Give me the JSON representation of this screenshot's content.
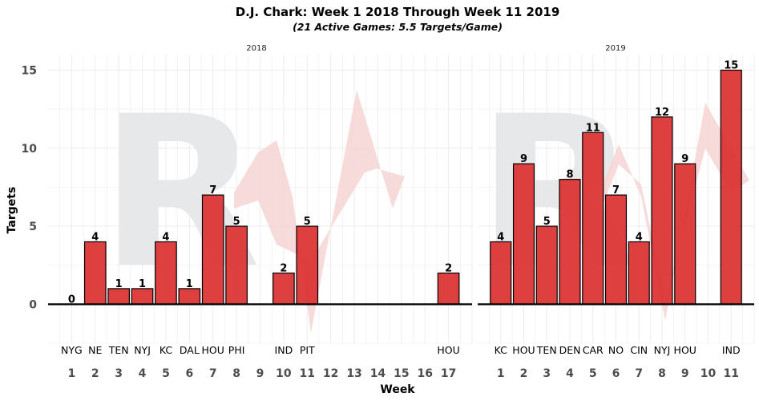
{
  "chart_data": {
    "type": "bar",
    "title": "D.J. Chark: Week 1 2018 Through Week 11 2019",
    "subtitle": "(21 Active Games: 5.5 Targets/Game)",
    "xlabel": "Week",
    "ylabel": "Targets",
    "ylim": [
      -2.5,
      16
    ],
    "yticks": [
      0,
      5,
      10,
      15
    ],
    "grid": true,
    "bar_color": "#dc3030",
    "bar_edge_color": "#000000",
    "watermark_color": "#e7e8ea",
    "watermark_accent_color": "#f6d3d3",
    "panels": [
      {
        "strip": "2018",
        "weeks": [
          1,
          2,
          3,
          4,
          5,
          6,
          7,
          8,
          9,
          10,
          11,
          12,
          13,
          14,
          15,
          16,
          17
        ],
        "x_tick_labels": [
          "1",
          "2",
          "3",
          "4",
          "5",
          "6",
          "7",
          "8",
          "9",
          "10",
          "11",
          "12",
          "13",
          "14",
          "15",
          "16",
          "17"
        ],
        "bars": [
          {
            "week": 1,
            "opponent": "NYG",
            "targets": 0
          },
          {
            "week": 2,
            "opponent": "NE",
            "targets": 4
          },
          {
            "week": 3,
            "opponent": "TEN",
            "targets": 1
          },
          {
            "week": 4,
            "opponent": "NYJ",
            "targets": 1
          },
          {
            "week": 5,
            "opponent": "KC",
            "targets": 4
          },
          {
            "week": 6,
            "opponent": "DAL",
            "targets": 1
          },
          {
            "week": 7,
            "opponent": "HOU",
            "targets": 7
          },
          {
            "week": 8,
            "opponent": "PHI",
            "targets": 5
          },
          {
            "week": 10,
            "opponent": "IND",
            "targets": 2
          },
          {
            "week": 11,
            "opponent": "PIT",
            "targets": 5
          },
          {
            "week": 17,
            "opponent": "HOU",
            "targets": 2
          }
        ]
      },
      {
        "strip": "2019",
        "weeks": [
          1,
          2,
          3,
          4,
          5,
          6,
          7,
          8,
          9,
          10,
          11
        ],
        "x_tick_labels": [
          "1",
          "2",
          "3",
          "4",
          "5",
          "6",
          "7",
          "8",
          "9",
          "10",
          "11"
        ],
        "bars": [
          {
            "week": 1,
            "opponent": "KC",
            "targets": 4
          },
          {
            "week": 2,
            "opponent": "HOU",
            "targets": 9
          },
          {
            "week": 3,
            "opponent": "TEN",
            "targets": 5
          },
          {
            "week": 4,
            "opponent": "DEN",
            "targets": 8
          },
          {
            "week": 5,
            "opponent": "CAR",
            "targets": 11
          },
          {
            "week": 6,
            "opponent": "NO",
            "targets": 7
          },
          {
            "week": 7,
            "opponent": "CIN",
            "targets": 4
          },
          {
            "week": 8,
            "opponent": "NYJ",
            "targets": 12
          },
          {
            "week": 9,
            "opponent": "HOU",
            "targets": 9
          },
          {
            "week": 11,
            "opponent": "IND",
            "targets": 15
          }
        ]
      }
    ],
    "watermark_letter": "R"
  }
}
